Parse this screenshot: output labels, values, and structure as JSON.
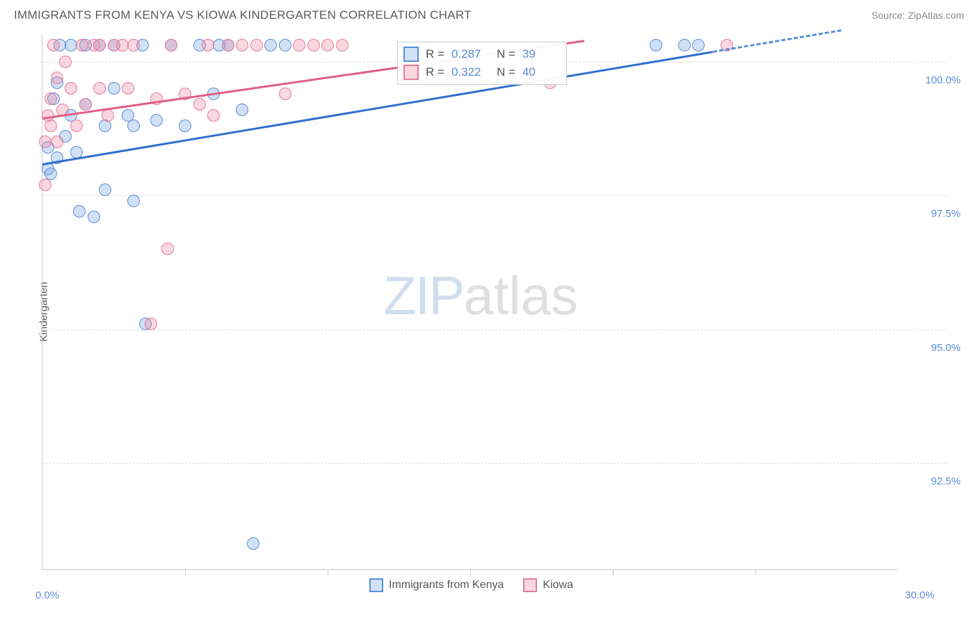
{
  "header": {
    "title": "IMMIGRANTS FROM KENYA VS KIOWA KINDERGARTEN CORRELATION CHART",
    "source_label": "Source: ",
    "source_name": "ZipAtlas.com"
  },
  "chart": {
    "type": "scatter",
    "ylabel": "Kindergarten",
    "background_color": "#ffffff",
    "grid_color": "#d8d8d8",
    "axis_color": "#cccccc",
    "tick_label_color": "#5b8dd6",
    "xlim": [
      0,
      30
    ],
    "ylim": [
      90.5,
      100.5
    ],
    "yticks": [
      {
        "value": 92.5,
        "label": "92.5%"
      },
      {
        "value": 95.0,
        "label": "95.0%"
      },
      {
        "value": 97.5,
        "label": "97.5%"
      },
      {
        "value": 100.0,
        "label": "100.0%"
      }
    ],
    "xticks_minor_step": 5,
    "xlabels": [
      {
        "value": 0,
        "label": "0.0%"
      },
      {
        "value": 30,
        "label": "30.0%"
      }
    ],
    "watermark": {
      "zip": "ZIP",
      "atlas": "atlas"
    },
    "series": [
      {
        "name": "Immigrants from Kenya",
        "marker_color_fill": "rgba(120,165,225,0.35)",
        "marker_color_stroke": "#5b8dd6",
        "marker_radius": 9,
        "trend_color": "#2e6fd0",
        "trend_dash_color": "#5b8dd6",
        "trend_start": {
          "x": 0,
          "y": 98.1
        },
        "trend_end_solid": {
          "x": 23.5,
          "y": 100.2
        },
        "trend_end_dash": {
          "x": 28.0,
          "y": 100.6
        },
        "R": "0.287",
        "N": "39",
        "points": [
          {
            "x": 0.2,
            "y": 98.0
          },
          {
            "x": 0.2,
            "y": 98.4
          },
          {
            "x": 0.3,
            "y": 97.9
          },
          {
            "x": 0.4,
            "y": 99.3
          },
          {
            "x": 0.5,
            "y": 98.2
          },
          {
            "x": 0.5,
            "y": 99.6
          },
          {
            "x": 0.6,
            "y": 100.3
          },
          {
            "x": 0.8,
            "y": 98.6
          },
          {
            "x": 1.0,
            "y": 99.0
          },
          {
            "x": 1.0,
            "y": 100.3
          },
          {
            "x": 1.2,
            "y": 98.3
          },
          {
            "x": 1.3,
            "y": 97.2
          },
          {
            "x": 1.5,
            "y": 99.2
          },
          {
            "x": 1.5,
            "y": 100.3
          },
          {
            "x": 1.8,
            "y": 97.1
          },
          {
            "x": 2.0,
            "y": 100.3
          },
          {
            "x": 2.2,
            "y": 98.8
          },
          {
            "x": 2.2,
            "y": 97.6
          },
          {
            "x": 2.5,
            "y": 99.5
          },
          {
            "x": 2.5,
            "y": 100.3
          },
          {
            "x": 3.0,
            "y": 99.0
          },
          {
            "x": 3.2,
            "y": 98.8
          },
          {
            "x": 3.2,
            "y": 97.4
          },
          {
            "x": 3.5,
            "y": 100.3
          },
          {
            "x": 3.6,
            "y": 95.1
          },
          {
            "x": 4.0,
            "y": 98.9
          },
          {
            "x": 4.5,
            "y": 100.3
          },
          {
            "x": 5.0,
            "y": 98.8
          },
          {
            "x": 5.5,
            "y": 100.3
          },
          {
            "x": 6.0,
            "y": 99.4
          },
          {
            "x": 6.5,
            "y": 100.3
          },
          {
            "x": 7.0,
            "y": 99.1
          },
          {
            "x": 7.4,
            "y": 91.0
          },
          {
            "x": 8.0,
            "y": 100.3
          },
          {
            "x": 8.5,
            "y": 100.3
          },
          {
            "x": 21.5,
            "y": 100.3
          },
          {
            "x": 22.5,
            "y": 100.3
          },
          {
            "x": 23.0,
            "y": 100.3
          },
          {
            "x": 6.2,
            "y": 100.3
          }
        ]
      },
      {
        "name": "Kiowa",
        "marker_color_fill": "rgba(235,130,160,0.32)",
        "marker_color_stroke": "#e47a9a",
        "marker_radius": 9,
        "trend_color": "#e05d85",
        "trend_start": {
          "x": 0,
          "y": 98.95
        },
        "trend_end_solid": {
          "x": 19.0,
          "y": 100.4
        },
        "R": "0.322",
        "N": "40",
        "points": [
          {
            "x": 0.1,
            "y": 98.5
          },
          {
            "x": 0.1,
            "y": 97.7
          },
          {
            "x": 0.2,
            "y": 99.0
          },
          {
            "x": 0.3,
            "y": 98.8
          },
          {
            "x": 0.3,
            "y": 99.3
          },
          {
            "x": 0.4,
            "y": 100.3
          },
          {
            "x": 0.5,
            "y": 99.7
          },
          {
            "x": 0.5,
            "y": 98.5
          },
          {
            "x": 0.7,
            "y": 99.1
          },
          {
            "x": 0.8,
            "y": 100.0
          },
          {
            "x": 1.0,
            "y": 99.5
          },
          {
            "x": 1.2,
            "y": 98.8
          },
          {
            "x": 1.4,
            "y": 100.3
          },
          {
            "x": 1.5,
            "y": 99.2
          },
          {
            "x": 1.8,
            "y": 100.3
          },
          {
            "x": 2.0,
            "y": 99.5
          },
          {
            "x": 2.0,
            "y": 100.3
          },
          {
            "x": 2.3,
            "y": 99.0
          },
          {
            "x": 2.5,
            "y": 100.3
          },
          {
            "x": 3.0,
            "y": 99.5
          },
          {
            "x": 3.2,
            "y": 100.3
          },
          {
            "x": 3.8,
            "y": 95.1
          },
          {
            "x": 4.0,
            "y": 99.3
          },
          {
            "x": 4.4,
            "y": 96.5
          },
          {
            "x": 4.5,
            "y": 100.3
          },
          {
            "x": 5.0,
            "y": 99.4
          },
          {
            "x": 5.5,
            "y": 99.2
          },
          {
            "x": 5.8,
            "y": 100.3
          },
          {
            "x": 6.0,
            "y": 99.0
          },
          {
            "x": 6.5,
            "y": 100.3
          },
          {
            "x": 7.0,
            "y": 100.3
          },
          {
            "x": 7.5,
            "y": 100.3
          },
          {
            "x": 8.5,
            "y": 99.4
          },
          {
            "x": 9.0,
            "y": 100.3
          },
          {
            "x": 9.5,
            "y": 100.3
          },
          {
            "x": 10.0,
            "y": 100.3
          },
          {
            "x": 10.5,
            "y": 100.3
          },
          {
            "x": 17.8,
            "y": 99.6
          },
          {
            "x": 24.0,
            "y": 100.3
          },
          {
            "x": 2.8,
            "y": 100.3
          }
        ]
      }
    ],
    "stats_box": {
      "R_label": "R =",
      "N_label": "N ="
    },
    "legend": {
      "items": [
        "Immigrants from Kenya",
        "Kiowa"
      ]
    }
  }
}
